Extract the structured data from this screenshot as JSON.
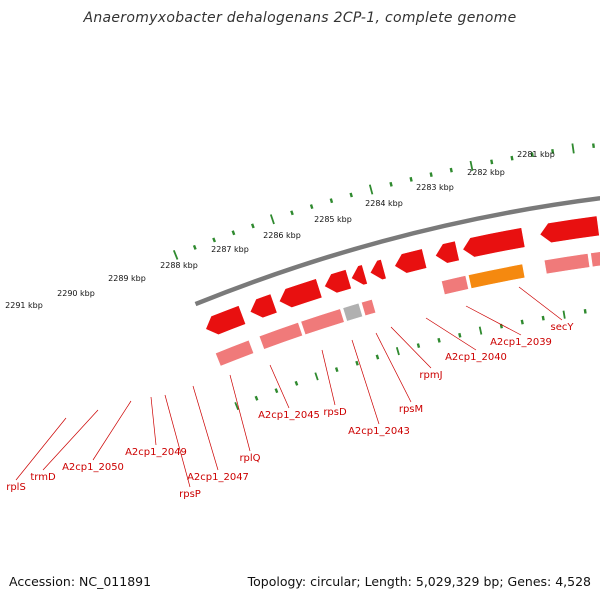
{
  "title": "Anaeromyxobacter dehalogenans 2CP-1, complete genome",
  "footer": {
    "accession": "Accession: NC_011891",
    "summary": "Topology: circular; Length: 5,029,329 bp; Genes: 4,528"
  },
  "colors": {
    "backbone": "#7a7a7a",
    "tick": "#2f8a2f",
    "gene_forward": "#e81010",
    "gene_reverse": "#f07a7a",
    "gene_other": "#b0b0b0",
    "label": "#cc0000",
    "rplQ_highlight": "#f5890f",
    "A2cp1_2040_highlight": "#1ea6e0",
    "secY_highlight": "#a6ef3a"
  },
  "scale_labels": [
    "2281 kbp",
    "2282 kbp",
    "2283 kbp",
    "2284 kbp",
    "2285 kbp",
    "2286 kbp",
    "2287 kbp",
    "2288 kbp",
    "2289 kbp",
    "2290 kbp",
    "2291 kbp"
  ],
  "gene_labels": [
    "rplS",
    "trmD",
    "A2cp1_2050",
    "A2cp1_2049",
    "rpsP",
    "A2cp1_2047",
    "rplQ",
    "A2cp1_2045",
    "rpsD",
    "A2cp1_2043",
    "rpsM",
    "rpmJ",
    "A2cp1_2040",
    "A2cp1_2039",
    "secY"
  ]
}
